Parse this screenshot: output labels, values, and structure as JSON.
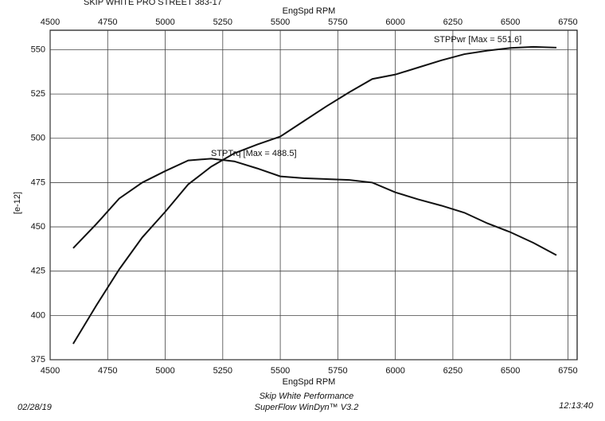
{
  "chart_data": {
    "type": "line",
    "title": "SKIP WHITE PRO STREET 383-17",
    "x_label": "EngSpd RPM",
    "y_label": "[e-12]",
    "x": [
      4600,
      4700,
      4800,
      4900,
      5000,
      5100,
      5200,
      5300,
      5400,
      5500,
      5600,
      5700,
      5800,
      5900,
      6000,
      6100,
      6200,
      6300,
      6400,
      6500,
      6600,
      6700
    ],
    "series": [
      {
        "color": "#111111",
        "values": [
          384,
          405.5,
          426,
          444,
          458.5,
          474,
          484,
          491.5,
          496.5,
          501,
          509.5,
          518,
          526,
          533.5,
          536,
          540,
          544,
          547.5,
          549.5,
          551,
          551.6,
          551.2
        ]
      },
      {
        "color": "#111111",
        "values": [
          438,
          451.5,
          466,
          475,
          481.5,
          487.5,
          488.5,
          487,
          483,
          478.5,
          477.5,
          477,
          476.5,
          475,
          469.5,
          465.5,
          462,
          458,
          452,
          447,
          441,
          434
        ]
      }
    ],
    "annotations": [
      "STPPwr [Max = 551.6]",
      "STPTrq [Max = 488.5]"
    ],
    "xlim": [
      4500,
      6790
    ],
    "ylim": [
      375,
      561
    ],
    "xticks": [
      4500,
      4750,
      5000,
      5250,
      5500,
      5750,
      6000,
      6250,
      6500,
      6750
    ],
    "yticks": [
      375,
      400,
      425,
      450,
      475,
      500,
      525,
      550
    ],
    "grid": true,
    "footer": {
      "date": "02/28/19",
      "company": "Skip White Performance",
      "software": "SuperFlow WinDyn™ V3.2",
      "time": "12:13:40"
    }
  }
}
